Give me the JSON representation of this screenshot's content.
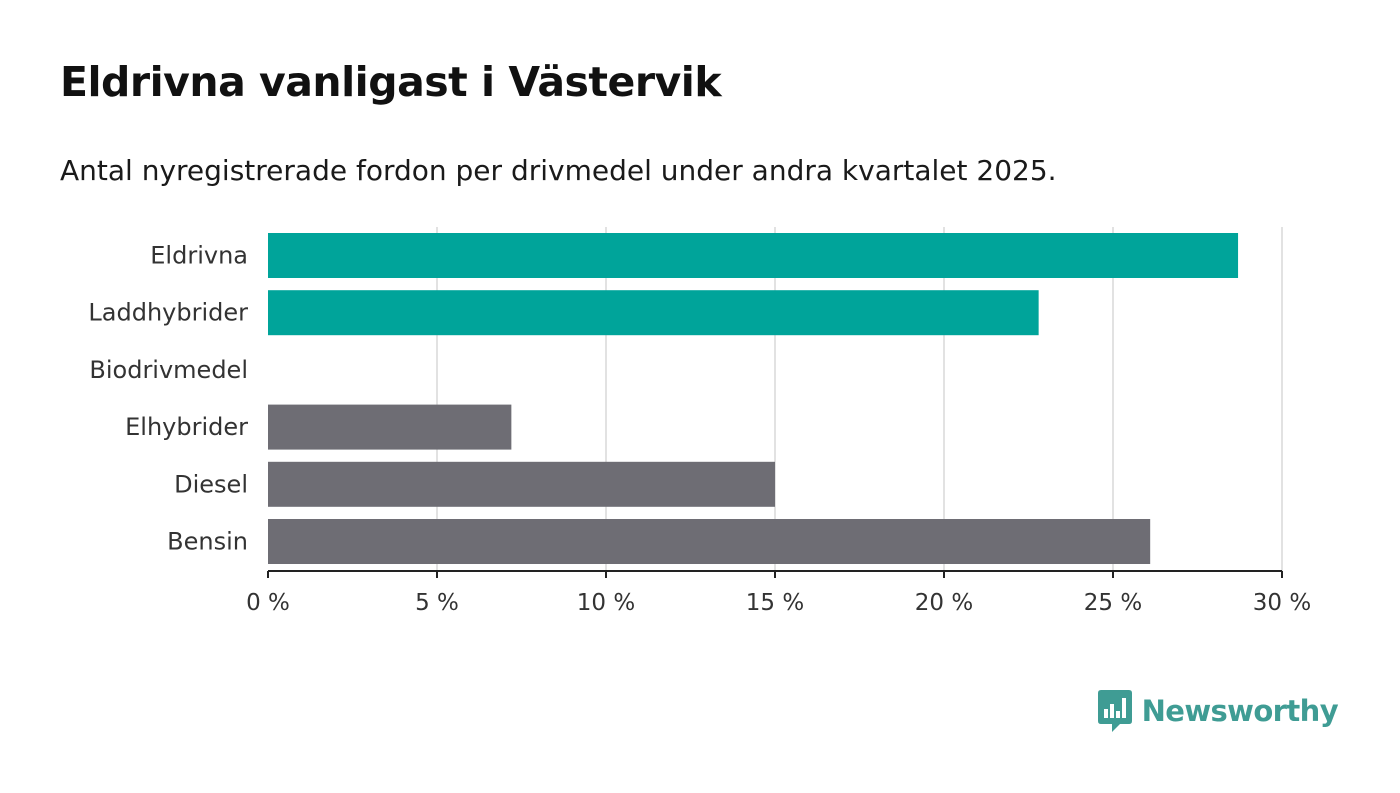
{
  "header": {
    "title": "Eldrivna vanligast i Västervik",
    "subtitle": "Antal nyregistrerade fordon per drivmedel under andra kvartalet 2025."
  },
  "brand": {
    "name": "Newsworthy",
    "icon": "newsworthy-logo-icon",
    "color": "#3f9c94"
  },
  "colors": {
    "highlight": "#00a49a",
    "other": "#6e6d74",
    "grid": "#d9d9d9",
    "axis": "#222222"
  },
  "chart_data": {
    "type": "bar",
    "orientation": "horizontal",
    "title": "Eldrivna vanligast i Västervik",
    "subtitle": "Antal nyregistrerade fordon per drivmedel under andra kvartalet 2025.",
    "xlabel": "",
    "ylabel": "",
    "categories": [
      "Eldrivna",
      "Laddhybrider",
      "Biodrivmedel",
      "Elhybrider",
      "Diesel",
      "Bensin"
    ],
    "values": [
      28.7,
      22.8,
      0,
      7.2,
      15.0,
      26.1
    ],
    "highlight": [
      true,
      true,
      true,
      false,
      false,
      false
    ],
    "xlim": [
      0,
      30
    ],
    "ticks": [
      0,
      5,
      10,
      15,
      20,
      25,
      30
    ],
    "tick_labels": [
      "0 %",
      "5 %",
      "10 %",
      "15 %",
      "20 %",
      "25 %",
      "30 %"
    ],
    "grid": true,
    "legend": "none"
  }
}
